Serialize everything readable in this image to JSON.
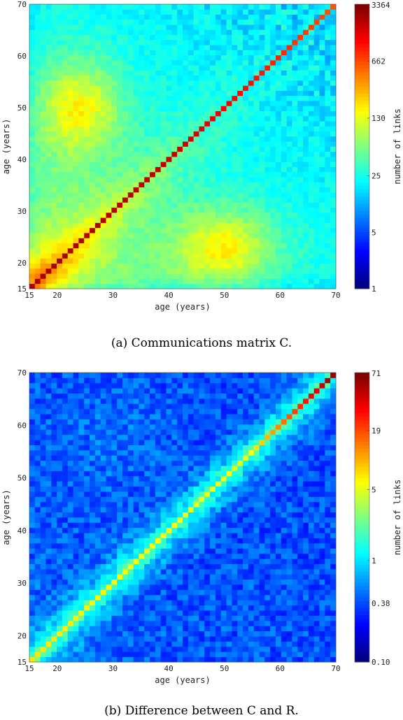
{
  "chart_data": [
    {
      "type": "heatmap",
      "caption": "(a) Communications matrix C.",
      "xlabel": "age (years)",
      "ylabel": "age (years)",
      "xlim": [
        15,
        70
      ],
      "ylim": [
        15,
        70
      ],
      "x_ticks": [
        "15",
        "20",
        "30",
        "40",
        "50",
        "60",
        "70"
      ],
      "y_ticks": [
        "15",
        "20",
        "30",
        "40",
        "50",
        "60",
        "70"
      ],
      "colorbar": {
        "label": "number of links",
        "scale": "log",
        "min": 1,
        "max": 3364,
        "ticks": [
          "1",
          "5",
          "25",
          "130",
          "662",
          "3364"
        ]
      },
      "colormap": "jet",
      "pattern": "strong diagonal peak (~3364) with elevated off-diagonal lobes near (25,50) and (50,22), decaying toward older ages"
    },
    {
      "type": "heatmap",
      "caption": "(b) Difference between C and R.",
      "xlabel": "age (years)",
      "ylabel": "age (years)",
      "xlim": [
        15,
        70
      ],
      "ylim": [
        15,
        70
      ],
      "x_ticks": [
        "15",
        "20",
        "30",
        "40",
        "50",
        "60",
        "70"
      ],
      "y_ticks": [
        "15",
        "20",
        "30",
        "40",
        "50",
        "60",
        "70"
      ],
      "colorbar": {
        "label": "number of links",
        "scale": "log",
        "min": 0.1,
        "max": 71,
        "ticks": [
          "0.10",
          "0.38",
          "1",
          "5",
          "19",
          "71"
        ]
      },
      "colormap": "jet",
      "pattern": "diagonal ~5 rising to ~71 at oldest ages, off-diagonal mostly below 1"
    }
  ]
}
